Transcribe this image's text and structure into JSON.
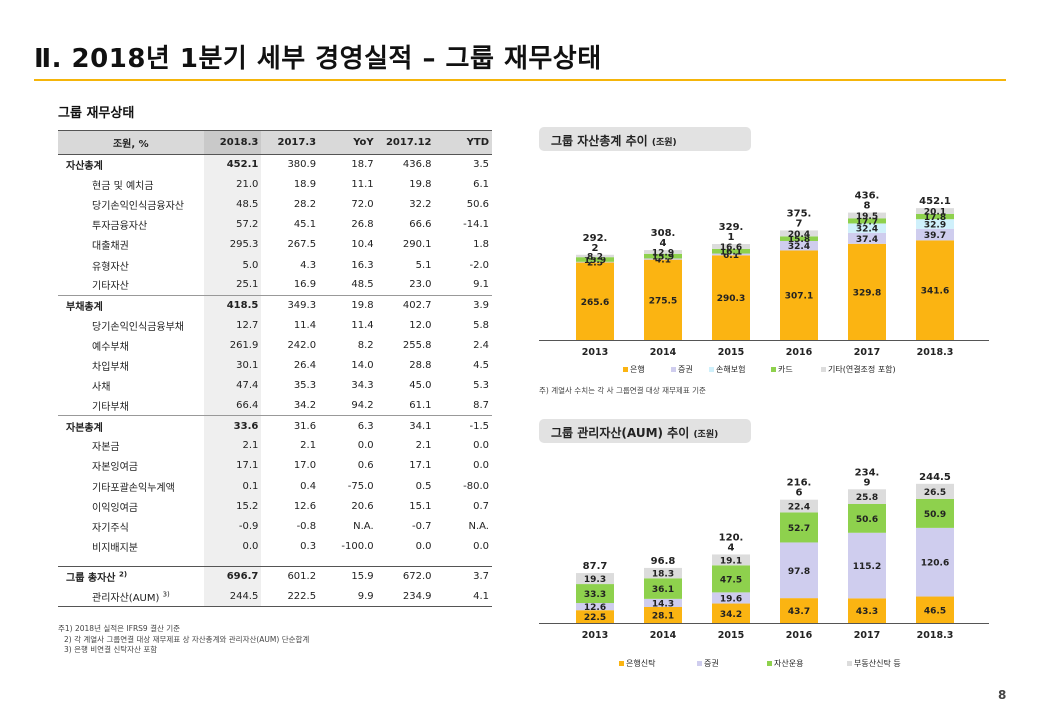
{
  "header": {
    "title": "Ⅱ. 2018년 1분기 세부 경영실적 – 그룹 재무상태"
  },
  "table_section": {
    "title": "그룹 재무상태",
    "columns": [
      "조원, %",
      "2018.3",
      "2017.3",
      "YoY",
      "2017.12",
      "YTD"
    ],
    "rows": [
      {
        "kind": "main",
        "label": "자산총계",
        "v": [
          "452.1",
          "380.9",
          "18.7",
          "436.8",
          "3.5"
        ]
      },
      {
        "kind": "sub",
        "label": "현금 및 예치금",
        "v": [
          "21.0",
          "18.9",
          "11.1",
          "19.8",
          "6.1"
        ]
      },
      {
        "kind": "sub",
        "label": "당기손익인식금융자산",
        "v": [
          "48.5",
          "28.2",
          "72.0",
          "32.2",
          "50.6"
        ]
      },
      {
        "kind": "sub",
        "label": "투자금융자산",
        "v": [
          "57.2",
          "45.1",
          "26.8",
          "66.6",
          "-14.1"
        ]
      },
      {
        "kind": "sub",
        "label": "대출채권",
        "v": [
          "295.3",
          "267.5",
          "10.4",
          "290.1",
          "1.8"
        ]
      },
      {
        "kind": "sub",
        "label": "유형자산",
        "v": [
          "5.0",
          "4.3",
          "16.3",
          "5.1",
          "-2.0"
        ]
      },
      {
        "kind": "sub",
        "label": "기타자산",
        "v": [
          "25.1",
          "16.9",
          "48.5",
          "23.0",
          "9.1"
        ],
        "end": true
      },
      {
        "kind": "main",
        "label": "부채총계",
        "v": [
          "418.5",
          "349.3",
          "19.8",
          "402.7",
          "3.9"
        ]
      },
      {
        "kind": "sub",
        "label": "당기손익인식금융부채",
        "v": [
          "12.7",
          "11.4",
          "11.4",
          "12.0",
          "5.8"
        ]
      },
      {
        "kind": "sub",
        "label": "예수부채",
        "v": [
          "261.9",
          "242.0",
          "8.2",
          "255.8",
          "2.4"
        ]
      },
      {
        "kind": "sub",
        "label": "차입부채",
        "v": [
          "30.1",
          "26.4",
          "14.0",
          "28.8",
          "4.5"
        ]
      },
      {
        "kind": "sub",
        "label": "사채",
        "v": [
          "47.4",
          "35.3",
          "34.3",
          "45.0",
          "5.3"
        ]
      },
      {
        "kind": "sub",
        "label": "기타부채",
        "v": [
          "66.4",
          "34.2",
          "94.2",
          "61.1",
          "8.7"
        ],
        "end": true
      },
      {
        "kind": "main",
        "label": "자본총계",
        "v": [
          "33.6",
          "31.6",
          "6.3",
          "34.1",
          "-1.5"
        ]
      },
      {
        "kind": "sub",
        "label": "자본금",
        "v": [
          "2.1",
          "2.1",
          "0.0",
          "2.1",
          "0.0"
        ]
      },
      {
        "kind": "sub",
        "label": "자본잉여금",
        "v": [
          "17.1",
          "17.0",
          "0.6",
          "17.1",
          "0.0"
        ]
      },
      {
        "kind": "sub",
        "label": "기타포괄손익누계액",
        "v": [
          "0.1",
          "0.4",
          "-75.0",
          "0.5",
          "-80.0"
        ]
      },
      {
        "kind": "sub",
        "label": "이익잉여금",
        "v": [
          "15.2",
          "12.6",
          "20.6",
          "15.1",
          "0.7"
        ]
      },
      {
        "kind": "sub",
        "label": "자기주식",
        "v": [
          "-0.9",
          "-0.8",
          "N.A.",
          "-0.7",
          "N.A."
        ]
      },
      {
        "kind": "sub",
        "label": "비지배지분",
        "v": [
          "0.0",
          "0.3",
          "-100.0",
          "0.0",
          "0.0"
        ]
      }
    ],
    "total_rows": [
      {
        "kind": "main",
        "label": "그룹 총자산",
        "sup": "2)",
        "v": [
          "696.7",
          "601.2",
          "15.9",
          "672.0",
          "3.7"
        ]
      },
      {
        "kind": "sub",
        "label": "관리자산(AUM)",
        "sup": "3)",
        "v": [
          "244.5",
          "222.5",
          "9.9",
          "234.9",
          "4.1"
        ]
      }
    ],
    "footnotes": [
      "주1) 2018년 실적은 IFRS9 결산 기준",
      "2) 각 계열사 그룹연결 대상 재무제표 상 자산총계와 관리자산(AUM) 단순합계",
      "3) 은행 비연결 신탁자산 포함"
    ]
  },
  "chart1_box": {
    "title": "그룹 자산총계 추이",
    "unit": "(조원)"
  },
  "chart2_box": {
    "title": "그룹 관리자산(AUM) 추이",
    "unit": "(조원)"
  },
  "chart_note": "주) 계열사 수치는 각 사 그룹연결 대상 재무제표 기준",
  "chart_data": [
    {
      "type": "bar",
      "stacked": true,
      "title": "그룹 자산총계 추이 (조원)",
      "categories": [
        "2013",
        "2014",
        "2015",
        "2016",
        "2017",
        "2018.3"
      ],
      "totals": [
        "292.2",
        "308.4",
        "329.1",
        "375.7",
        "436.8",
        "452.1"
      ],
      "series": [
        {
          "name": "은행",
          "color": "#fbb412",
          "values": [
            265.6,
            275.5,
            290.3,
            307.1,
            329.8,
            341.6
          ]
        },
        {
          "name": "증권",
          "color": "#cfcdee",
          "values": [
            2.5,
            4.1,
            6.1,
            32.4,
            37.4,
            39.7
          ]
        },
        {
          "name": "손해보험",
          "color": "#cff0fb",
          "values": [
            null,
            null,
            null,
            null,
            32.4,
            32.9
          ]
        },
        {
          "name": "카드",
          "color": "#8ed14d",
          "values": [
            15.9,
            15.9,
            16.1,
            15.8,
            17.7,
            17.8
          ]
        },
        {
          "name": "기타(연결조정 포함)",
          "color": "#dcdcdc",
          "values": [
            8.2,
            12.9,
            16.6,
            20.4,
            19.5,
            20.1
          ]
        }
      ],
      "ylim": [
        0,
        480
      ],
      "legend_position": "bottom"
    },
    {
      "type": "bar",
      "stacked": true,
      "title": "그룹 관리자산(AUM) 추이 (조원)",
      "categories": [
        "2013",
        "2014",
        "2015",
        "2016",
        "2017",
        "2018.3"
      ],
      "totals": [
        "87.7",
        "96.8",
        "120.4",
        "216.6",
        "234.9",
        "244.5"
      ],
      "series": [
        {
          "name": "은행신탁",
          "color": "#fbb412",
          "values": [
            22.5,
            28.1,
            34.2,
            43.7,
            43.3,
            46.5
          ]
        },
        {
          "name": "증권",
          "color": "#cfcdee",
          "values": [
            12.6,
            14.3,
            19.6,
            97.8,
            115.2,
            120.6
          ]
        },
        {
          "name": "자산운용",
          "color": "#8ed14d",
          "values": [
            33.3,
            36.1,
            47.5,
            52.7,
            50.6,
            50.9
          ]
        },
        {
          "name": "부동산신탁 등",
          "color": "#dcdcdc",
          "values": [
            19.3,
            18.3,
            19.1,
            22.4,
            25.8,
            26.5
          ]
        }
      ],
      "ylim": [
        0,
        260
      ],
      "legend_position": "bottom"
    }
  ],
  "page_number": "8"
}
